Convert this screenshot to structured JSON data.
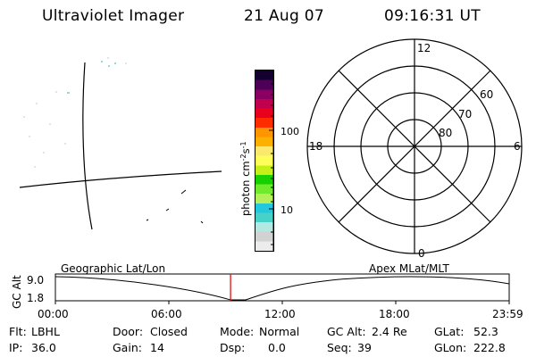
{
  "header": {
    "instrument": "Ultraviolet Imager",
    "date": "21 Aug 07",
    "time": "09:16:31 UT"
  },
  "colorbar": {
    "unit_label": "photon cm",
    "unit_exp1": "-2",
    "unit_s": "s",
    "unit_exp2": "-1",
    "tick_100": "100",
    "tick_10": "10",
    "colors": [
      "#ececec",
      "#d2d2d2",
      "#b6e8e2",
      "#46d2c8",
      "#24c8de",
      "#b4f05a",
      "#70ea2c",
      "#18d000",
      "#c4f018",
      "#ffff5a",
      "#fae96e",
      "#fdb000",
      "#ff9500",
      "#ff2c00",
      "#e8001c",
      "#c0004e",
      "#8a0062",
      "#4c0058",
      "#14002e"
    ]
  },
  "polar_plot": {
    "mlt_12": "12",
    "mlt_18": "18",
    "mlt_6": "6",
    "mlt_0": "0",
    "lat_60": "60",
    "lat_70": "70",
    "lat_80": "80"
  },
  "timeline": {
    "y_axis_label": "GC Alt",
    "y_max": "9.0",
    "y_min": "1.8",
    "left_label": "Geographic Lat/Lon",
    "right_label": "Apex MLat/MLT",
    "x_ticks": [
      "00:00",
      "06:00",
      "12:00",
      "18:00",
      "23:59"
    ],
    "current_time_fraction": 0.386
  },
  "info": {
    "flt_label": "Flt:",
    "flt_value": "LBHL",
    "ip_label": "IP:",
    "ip_value": "36.0",
    "door_label": "Door:",
    "door_value": "Closed",
    "gain_label": "Gain:",
    "gain_value": "14",
    "mode_label": "Mode:",
    "mode_value": "Normal",
    "dsp_label": "Dsp:",
    "dsp_value": "0.0",
    "gcalt_label": "GC Alt:",
    "gcalt_value": "2.4 Re",
    "seq_label": "Seq:",
    "seq_value": "39",
    "glat_label": "GLat:",
    "glat_value": "52.3",
    "glon_label": "GLon:",
    "glon_value": "222.8"
  }
}
